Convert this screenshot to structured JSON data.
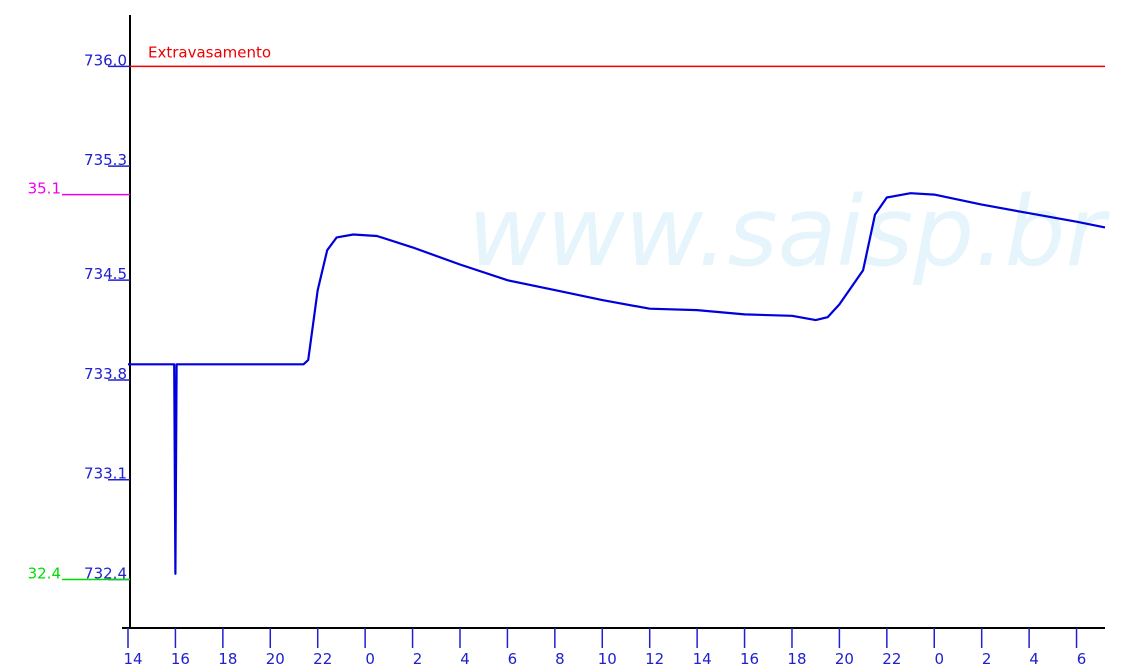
{
  "chart_data": {
    "type": "line",
    "watermark": "www.saisp.br",
    "x": [
      0,
      1.9,
      1.95,
      2.0,
      2.05,
      7.4,
      7.6,
      8.0,
      8.4,
      8.8,
      9.5,
      10.5,
      12,
      14,
      16,
      18,
      20,
      22,
      24,
      26,
      28,
      29,
      29.5,
      30,
      30.5,
      31,
      31.5,
      32,
      33,
      34,
      36,
      38,
      40,
      41.2
    ],
    "series": [
      {
        "color": "#0000dd",
        "values": [
          733.91,
          733.91,
          733.91,
          732.44,
          733.91,
          733.91,
          733.94,
          734.43,
          734.71,
          734.8,
          734.82,
          734.81,
          734.73,
          734.61,
          734.5,
          734.43,
          734.36,
          734.3,
          734.29,
          734.26,
          734.25,
          734.22,
          734.24,
          734.33,
          734.45,
          734.57,
          734.96,
          735.08,
          735.11,
          735.1,
          735.03,
          734.97,
          734.91,
          734.87
        ]
      }
    ],
    "xlim": [
      0,
      41.2
    ],
    "ylim": [
      732.06,
      736.36
    ],
    "xticks": [
      {
        "value": 0,
        "label": "14"
      },
      {
        "value": 2,
        "label": "16"
      },
      {
        "value": 4,
        "label": "18"
      },
      {
        "value": 6,
        "label": "20"
      },
      {
        "value": 8,
        "label": "22"
      },
      {
        "value": 10,
        "label": "0"
      },
      {
        "value": 12,
        "label": "2"
      },
      {
        "value": 14,
        "label": "4"
      },
      {
        "value": 16,
        "label": "6"
      },
      {
        "value": 18,
        "label": "8"
      },
      {
        "value": 20,
        "label": "10"
      },
      {
        "value": 22,
        "label": "12"
      },
      {
        "value": 24,
        "label": "14"
      },
      {
        "value": 26,
        "label": "16"
      },
      {
        "value": 28,
        "label": "18"
      },
      {
        "value": 30,
        "label": "20"
      },
      {
        "value": 32,
        "label": "22"
      },
      {
        "value": 34,
        "label": "0"
      },
      {
        "value": 36,
        "label": "2"
      },
      {
        "value": 38,
        "label": "4"
      },
      {
        "value": 40,
        "label": "6"
      }
    ],
    "yticks": [
      {
        "value": 736,
        "label": "736.0"
      },
      735.3,
      734.5,
      733.8,
      733.1,
      732.4
    ],
    "reference_lines": [
      {
        "value": 736,
        "label": "Extravasamento",
        "color": "#ee0000"
      },
      {
        "value": 735.1,
        "label": "35.1",
        "color": "#ee00ee"
      },
      {
        "value": 732.4,
        "label": "32.4",
        "color": "#00dd00"
      }
    ]
  }
}
